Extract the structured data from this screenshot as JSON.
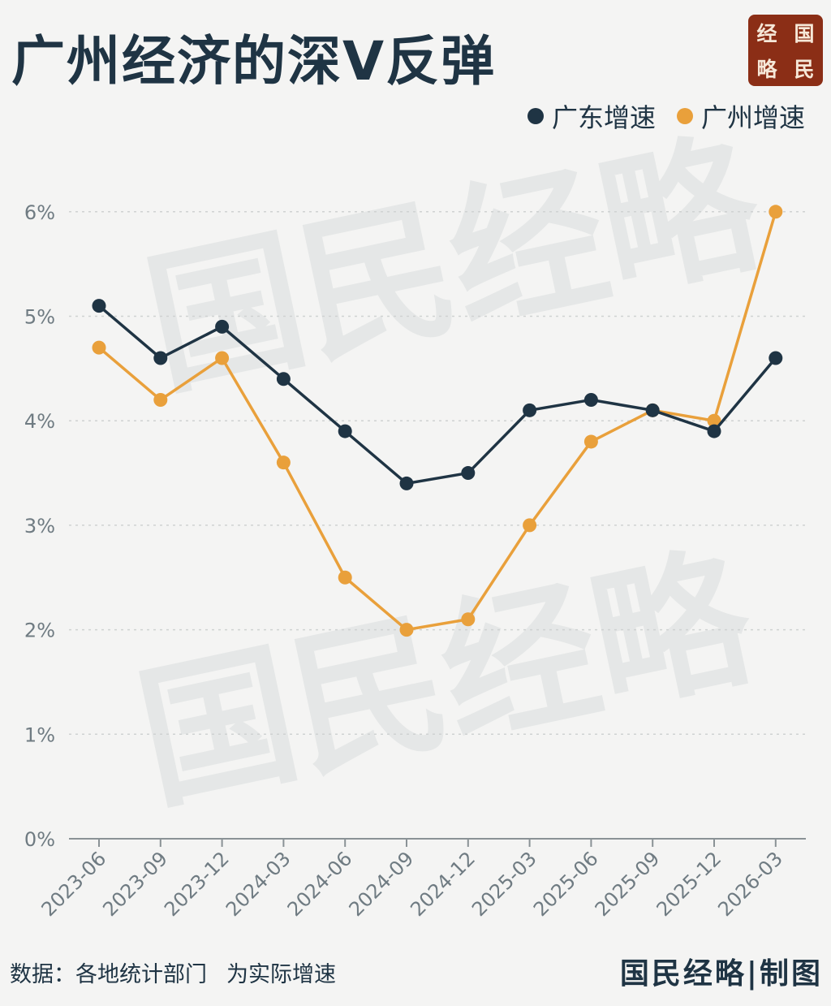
{
  "title": "广州经济的深V反弹",
  "logo": {
    "chars": [
      "经",
      "国",
      "略",
      "民"
    ],
    "color": "#8b2e16"
  },
  "watermark": "国民经略",
  "source_label": "数据：各地统计部门",
  "source_note": "为实际增速",
  "credit": "国民经略|制图",
  "chart_data": {
    "type": "line",
    "categories": [
      "2023-06",
      "2023-09",
      "2023-12",
      "2024-03",
      "2024-06",
      "2024-09",
      "2024-12",
      "2025-03",
      "2025-06",
      "2025-09",
      "2025-12",
      "2026-03"
    ],
    "series": [
      {
        "name": "广东增速",
        "color": "#1f3444",
        "values": [
          5.1,
          4.6,
          4.9,
          4.4,
          3.9,
          3.4,
          3.5,
          4.1,
          4.2,
          4.1,
          3.9,
          4.6
        ]
      },
      {
        "name": "广州增速",
        "color": "#e9a03b",
        "values": [
          4.7,
          4.2,
          4.6,
          3.6,
          2.5,
          2.0,
          2.1,
          3.0,
          3.8,
          4.1,
          4.0,
          6.0
        ]
      }
    ],
    "ylim": [
      0,
      6
    ],
    "yticks": [
      "0%",
      "1%",
      "2%",
      "3%",
      "4%",
      "5%",
      "6%"
    ],
    "legend": "top-right",
    "grid": true
  }
}
